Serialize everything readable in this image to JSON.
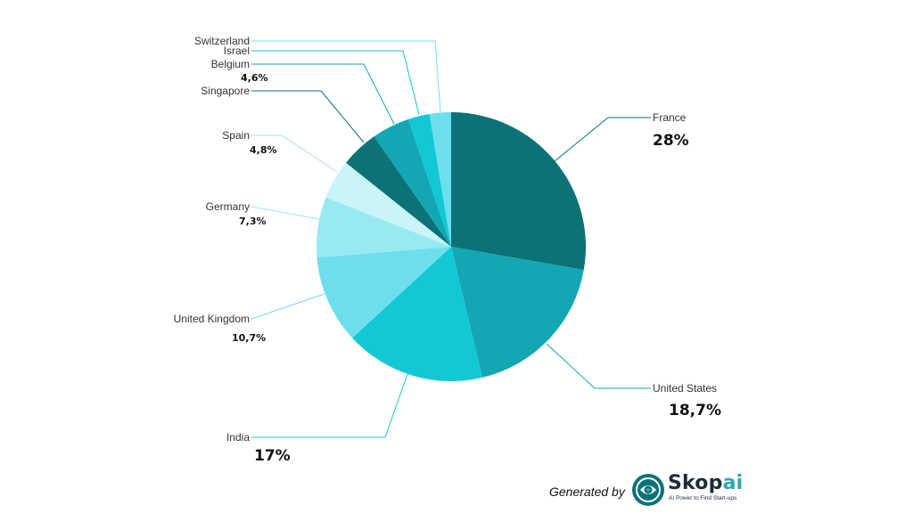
{
  "chart_data": {
    "type": "pie",
    "slices": [
      {
        "label": "France",
        "value": 28,
        "value_label": "28%",
        "color": "#0b7277"
      },
      {
        "label": "United States",
        "value": 18.7,
        "value_label": "18,7%",
        "color": "#12a7b2"
      },
      {
        "label": "India",
        "value": 17,
        "value_label": "17%",
        "color": "#13c8d5"
      },
      {
        "label": "United Kingdom",
        "value": 10.7,
        "value_label": "10,7%",
        "color": "#6ddfec"
      },
      {
        "label": "Germany",
        "value": 7.3,
        "value_label": "7,3%",
        "color": "#98eaf2"
      },
      {
        "label": "Spain",
        "value": 4.8,
        "value_label": "4,8%",
        "color": "#c9f4f8"
      },
      {
        "label": "Singapore",
        "value": 4.6,
        "value_label": "",
        "color": "#0b7277"
      },
      {
        "label": "Belgium",
        "value": 4.6,
        "value_label": "4,6%",
        "color": "#12a7b2"
      },
      {
        "label": "Israel",
        "value": 2.6,
        "value_label": "",
        "color": "#13c8d5"
      },
      {
        "label": "Switzerland",
        "value": 2.6,
        "value_label": "",
        "color": "#6ddfec"
      }
    ],
    "start_angle_deg": 0,
    "direction": "clockwise"
  },
  "branding": {
    "generated_by": "Generated by",
    "name_main": "Skop",
    "name_accent": "ai",
    "tagline": "AI Power to Find Start-ups"
  }
}
